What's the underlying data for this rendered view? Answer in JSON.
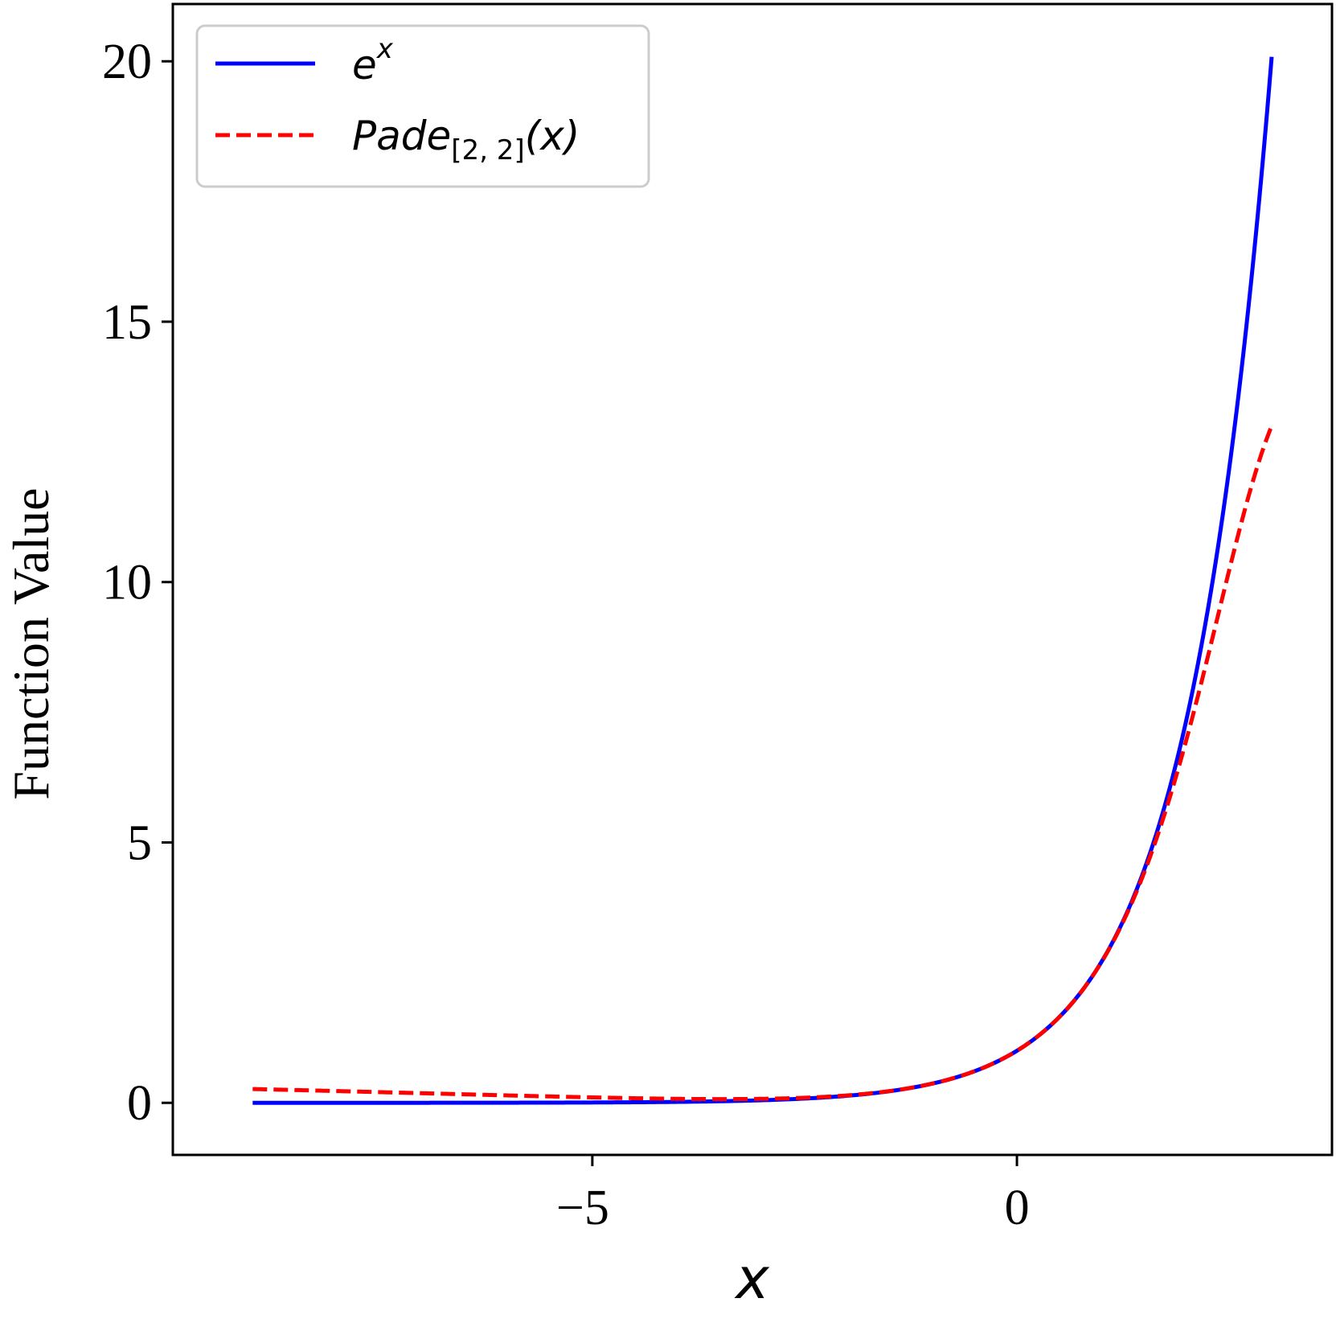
{
  "chart_data": {
    "type": "line",
    "xlabel": "x",
    "ylabel": "Function Value",
    "xlim": [
      -9.94,
      3.71
    ],
    "ylim": [
      -1.0,
      21.1
    ],
    "xticks": [
      -5,
      0
    ],
    "xtick_labels": [
      "−5",
      "0"
    ],
    "yticks": [
      0,
      5,
      10,
      15,
      20
    ],
    "ytick_labels": [
      "0",
      "5",
      "10",
      "15",
      "20"
    ],
    "grid": false,
    "legend": {
      "placement": "top-left",
      "entries": [
        {
          "base": "e",
          "sup": "x",
          "sub": "",
          "suffix": ""
        },
        {
          "base": "Pade",
          "sup": "",
          "sub": "[2, 2]",
          "suffix": "(x)"
        }
      ]
    },
    "series": [
      {
        "color": "#0000ff",
        "style": "solid",
        "function": "exp(x)",
        "x_range": [
          -9.0,
          3.0
        ],
        "samples": 400
      },
      {
        "color": "#ff0000",
        "style": "dashed",
        "function": "(12 + 6x + x^2) / (12 - 6x + x^2)",
        "x_range": [
          -9.0,
          3.0
        ],
        "samples": 400
      }
    ]
  }
}
